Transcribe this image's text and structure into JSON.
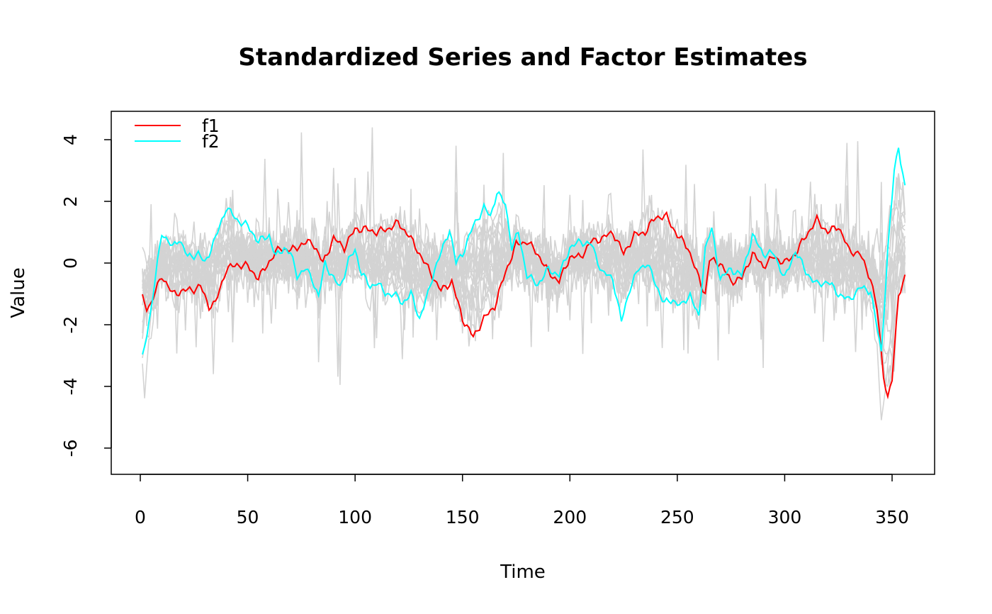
{
  "chart_data": {
    "type": "line",
    "title": "Standardized Series and Factor Estimates",
    "xlabel": "Time",
    "ylabel": "Value",
    "xlim": [
      -12,
      370
    ],
    "ylim": [
      -6.85,
      4.9
    ],
    "xticks": [
      0,
      50,
      100,
      150,
      200,
      250,
      300,
      350
    ],
    "yticks": [
      4,
      2,
      0,
      -2,
      -4,
      -6
    ],
    "legend_position": "top-left",
    "grid": false,
    "background_series": {
      "count": 20,
      "seed": 11,
      "color": "#d3d3d3",
      "n": 356
    },
    "series": [
      {
        "name": "f1",
        "color": "#ff0000",
        "x": [
          1,
          3,
          5,
          10,
          15,
          20,
          25,
          28,
          32,
          35,
          40,
          45,
          50,
          55,
          60,
          65,
          70,
          75,
          80,
          85,
          90,
          95,
          100,
          105,
          110,
          115,
          120,
          125,
          130,
          135,
          140,
          145,
          150,
          155,
          160,
          165,
          170,
          175,
          180,
          185,
          190,
          195,
          200,
          205,
          210,
          215,
          220,
          225,
          230,
          235,
          240,
          245,
          250,
          255,
          260,
          263,
          265,
          270,
          275,
          280,
          285,
          290,
          295,
          300,
          305,
          310,
          315,
          320,
          325,
          330,
          335,
          340,
          343,
          346,
          348,
          350,
          353,
          356
        ],
        "y": [
          -1.15,
          -1.45,
          -1.3,
          -0.4,
          -1.0,
          -0.9,
          -0.85,
          -0.75,
          -1.4,
          -1.3,
          -0.2,
          -0.05,
          -0.1,
          -0.5,
          0.05,
          0.5,
          0.4,
          0.6,
          0.7,
          0.0,
          0.8,
          0.5,
          1.1,
          1.1,
          1.0,
          1.1,
          1.3,
          0.9,
          0.3,
          -0.3,
          -0.9,
          -0.6,
          -1.8,
          -2.4,
          -1.8,
          -1.4,
          -0.3,
          0.6,
          0.7,
          0.3,
          -0.3,
          -0.6,
          0.2,
          0.2,
          0.7,
          0.8,
          1.0,
          0.3,
          0.9,
          1.0,
          1.5,
          1.5,
          0.9,
          0.5,
          -0.5,
          -1.0,
          0.1,
          0.0,
          -0.6,
          -0.5,
          0.3,
          -0.1,
          0.2,
          0.0,
          0.3,
          0.9,
          1.4,
          1.0,
          1.2,
          0.4,
          0.3,
          -0.5,
          -1.5,
          -3.6,
          -4.4,
          -3.8,
          -1.0,
          -0.5
        ]
      },
      {
        "name": "f2",
        "color": "#00ffff",
        "x": [
          1,
          5,
          10,
          15,
          18,
          22,
          27,
          30,
          35,
          40,
          45,
          50,
          55,
          60,
          63,
          67,
          70,
          73,
          77,
          80,
          83,
          86,
          90,
          93,
          97,
          100,
          103,
          107,
          110,
          114,
          118,
          122,
          126,
          130,
          134,
          137,
          141,
          144,
          147,
          150,
          155,
          160,
          163,
          166,
          170,
          173,
          176,
          180,
          185,
          190,
          195,
          200,
          205,
          210,
          215,
          220,
          224,
          228,
          232,
          236,
          240,
          244,
          248,
          252,
          256,
          260,
          263,
          266,
          270,
          275,
          280,
          285,
          290,
          295,
          300,
          305,
          310,
          315,
          320,
          325,
          330,
          335,
          340,
          345,
          348,
          351,
          353,
          356
        ],
        "y": [
          -3.1,
          -1.5,
          1.0,
          0.5,
          0.8,
          0.2,
          0.3,
          0.0,
          0.8,
          1.8,
          1.4,
          1.2,
          0.7,
          0.9,
          0.2,
          0.5,
          0.3,
          -0.4,
          -0.2,
          -0.5,
          -1.1,
          0.0,
          -0.5,
          -0.8,
          0.1,
          0.4,
          -0.3,
          -0.8,
          -0.6,
          -1.0,
          -1.0,
          -1.3,
          -1.0,
          -1.8,
          -1.0,
          -0.2,
          0.5,
          1.1,
          0.0,
          0.3,
          1.2,
          1.8,
          1.5,
          2.3,
          1.9,
          0.5,
          1.0,
          -0.4,
          -0.7,
          -0.2,
          -0.4,
          0.5,
          0.7,
          0.6,
          -0.3,
          -0.5,
          -1.9,
          -0.8,
          -0.2,
          0.0,
          -0.7,
          -1.3,
          -1.2,
          -1.4,
          -1.0,
          -1.8,
          0.5,
          1.1,
          -0.5,
          -0.2,
          -0.4,
          0.9,
          0.3,
          0.3,
          -0.5,
          0.4,
          -0.3,
          -0.7,
          -0.6,
          -1.0,
          -1.2,
          -0.8,
          -0.9,
          -2.9,
          0.4,
          3.0,
          3.8,
          2.4
        ]
      }
    ]
  }
}
